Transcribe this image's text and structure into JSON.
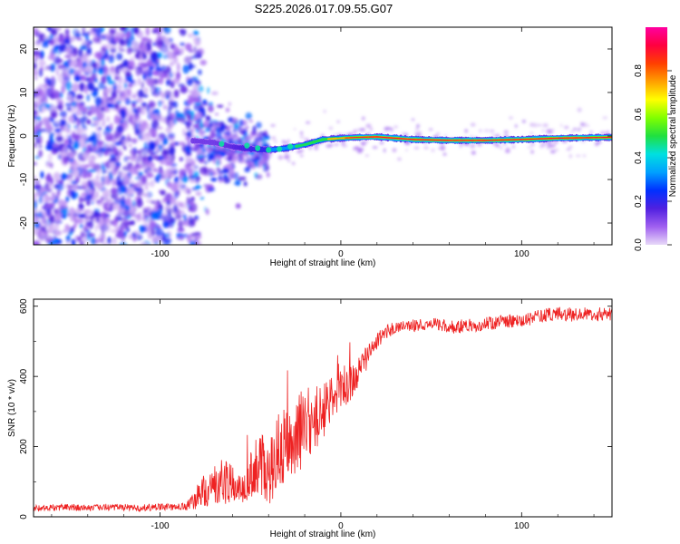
{
  "title": "S225.2026.017.09.55.G07",
  "chart_data": [
    {
      "type": "heatmap",
      "name": "spectrogram",
      "xlabel": "Height of straight line (km)",
      "ylabel": "Frequency (Hz)",
      "xlim": [
        -170,
        150
      ],
      "ylim": [
        -25,
        25
      ],
      "xticks": [
        -100,
        0,
        100
      ],
      "yticks": [
        -20,
        -10,
        0,
        10,
        20
      ],
      "ridge": {
        "x": [
          -85,
          -70,
          -60,
          -50,
          -40,
          -30,
          -20,
          -10,
          0,
          10,
          20,
          40,
          60,
          80,
          100,
          120,
          150
        ],
        "freq": [
          -1.0,
          -1.5,
          -2.5,
          -3.0,
          -3.2,
          -2.8,
          -2.0,
          -0.8,
          -0.5,
          -0.3,
          -0.2,
          -0.8,
          -1.0,
          -1.0,
          -0.8,
          -0.5,
          -0.3
        ]
      },
      "noise_region_x": [
        -170,
        -85
      ],
      "colorbar": {
        "label": "Normalized spectral amplitude",
        "range": [
          0.0,
          1.0
        ],
        "ticks": [
          "0.0",
          "0.2",
          "0.4",
          "0.6",
          "0.8"
        ],
        "colors": [
          "#e8d9f8",
          "#a060f0",
          "#5020e0",
          "#0030ff",
          "#00a0ff",
          "#00e0e0",
          "#20e040",
          "#80ff00",
          "#ffff00",
          "#ffa000",
          "#ff4000",
          "#ff0040",
          "#ff00a0"
        ]
      }
    },
    {
      "type": "line",
      "name": "snr",
      "xlabel": "Height of straight line (km)",
      "ylabel": "SNR (10 * v/v)",
      "xlim": [
        -170,
        150
      ],
      "ylim": [
        0,
        620
      ],
      "xticks": [
        -100,
        0,
        100
      ],
      "yticks": [
        0,
        200,
        400,
        600
      ],
      "color": "#ee2222",
      "series": [
        {
          "name": "SNR",
          "x": [
            -170,
            -150,
            -130,
            -110,
            -95,
            -85,
            -80,
            -75,
            -70,
            -65,
            -60,
            -55,
            -50,
            -45,
            -40,
            -35,
            -30,
            -25,
            -20,
            -15,
            -10,
            -5,
            0,
            5,
            10,
            15,
            20,
            25,
            30,
            40,
            50,
            60,
            70,
            80,
            90,
            100,
            110,
            120,
            130,
            140,
            150
          ],
          "mean": [
            25,
            27,
            27,
            26,
            28,
            30,
            55,
            75,
            90,
            100,
            90,
            80,
            120,
            150,
            130,
            180,
            200,
            230,
            260,
            280,
            300,
            340,
            370,
            380,
            420,
            460,
            500,
            525,
            540,
            545,
            550,
            540,
            545,
            550,
            555,
            560,
            570,
            580,
            575,
            578,
            575
          ],
          "noise": [
            10,
            10,
            10,
            10,
            10,
            12,
            35,
            50,
            60,
            65,
            55,
            50,
            70,
            90,
            100,
            110,
            115,
            120,
            110,
            100,
            80,
            70,
            60,
            55,
            45,
            35,
            25,
            20,
            18,
            18,
            18,
            20,
            20,
            20,
            20,
            20,
            20,
            20,
            20,
            20,
            20
          ]
        }
      ]
    }
  ]
}
